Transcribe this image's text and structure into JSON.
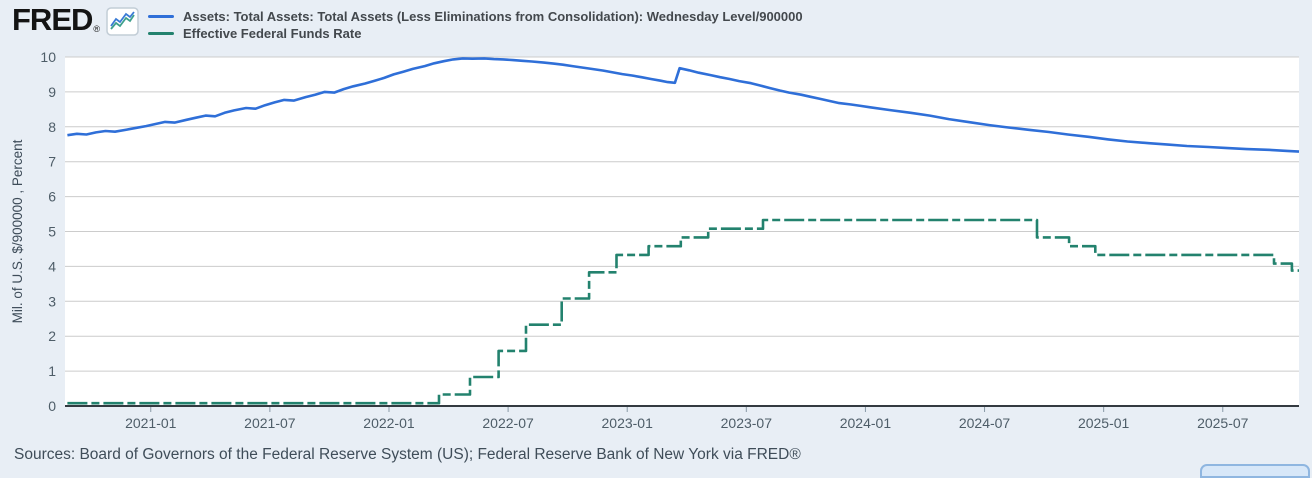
{
  "header": {
    "logo_text": "FRED",
    "logo_registered": "®",
    "legend": [
      {
        "label": "Assets: Total Assets: Total Assets (Less Eliminations from Consolidation): Wednesday Level/900000",
        "color": "#2f6fd8"
      },
      {
        "label": "Effective Federal Funds Rate",
        "color": "#23826e"
      }
    ]
  },
  "footer": {
    "sources": "Sources: Board of Governors of the Federal Reserve System (US); Federal Reserve Bank of New York via FRED®"
  },
  "colors": {
    "page_background": "#e8eef5",
    "plot_background": "#ffffff",
    "gridline": "#cccccc",
    "axis_line": "#333a40",
    "tick_text": "#4e5d68",
    "assets_line": "#2f6fd8",
    "effr_line": "#23826e"
  },
  "chart_data": {
    "type": "line",
    "title": "",
    "xlabel": "",
    "ylabel": "Mil. of U.S. $/900000 , Percent",
    "ylim": [
      0,
      10
    ],
    "yticks": [
      0,
      1,
      2,
      3,
      4,
      5,
      6,
      7,
      8,
      9,
      10
    ],
    "xlim_years": [
      2020.64,
      2025.82
    ],
    "xtick_years": [
      2021.0,
      2021.5,
      2022.0,
      2022.5,
      2023.0,
      2023.5,
      2024.0,
      2024.5,
      2025.0,
      2025.5
    ],
    "xtick_labels": [
      "2021-01",
      "2021-07",
      "2022-01",
      "2022-07",
      "2023-01",
      "2023-07",
      "2024-01",
      "2024-07",
      "2025-01",
      "2025-07"
    ],
    "grid": "horizontal",
    "legend_position": "top-left",
    "series": [
      {
        "name": "Assets: Total Assets: Total Assets (Less Eliminations from Consolidation): Wednesday Level/900000",
        "data_name": "assets-series-line",
        "color": "#2f6fd8",
        "line_style": "solid",
        "interpolation": "linear",
        "points": [
          [
            2020.65,
            7.76
          ],
          [
            2020.69,
            7.8
          ],
          [
            2020.73,
            7.78
          ],
          [
            2020.77,
            7.84
          ],
          [
            2020.81,
            7.88
          ],
          [
            2020.85,
            7.86
          ],
          [
            2020.9,
            7.92
          ],
          [
            2020.94,
            7.97
          ],
          [
            2020.98,
            8.02
          ],
          [
            2021.02,
            8.08
          ],
          [
            2021.06,
            8.14
          ],
          [
            2021.1,
            8.12
          ],
          [
            2021.15,
            8.2
          ],
          [
            2021.19,
            8.26
          ],
          [
            2021.23,
            8.32
          ],
          [
            2021.27,
            8.3
          ],
          [
            2021.31,
            8.4
          ],
          [
            2021.35,
            8.47
          ],
          [
            2021.4,
            8.54
          ],
          [
            2021.44,
            8.52
          ],
          [
            2021.48,
            8.62
          ],
          [
            2021.52,
            8.7
          ],
          [
            2021.56,
            8.77
          ],
          [
            2021.6,
            8.75
          ],
          [
            2021.65,
            8.85
          ],
          [
            2021.69,
            8.92
          ],
          [
            2021.73,
            9.0
          ],
          [
            2021.77,
            8.98
          ],
          [
            2021.81,
            9.08
          ],
          [
            2021.85,
            9.16
          ],
          [
            2021.9,
            9.24
          ],
          [
            2021.94,
            9.32
          ],
          [
            2021.98,
            9.4
          ],
          [
            2022.02,
            9.5
          ],
          [
            2022.06,
            9.58
          ],
          [
            2022.1,
            9.66
          ],
          [
            2022.15,
            9.74
          ],
          [
            2022.19,
            9.82
          ],
          [
            2022.23,
            9.88
          ],
          [
            2022.27,
            9.93
          ],
          [
            2022.31,
            9.96
          ],
          [
            2022.35,
            9.95
          ],
          [
            2022.4,
            9.96
          ],
          [
            2022.44,
            9.94
          ],
          [
            2022.48,
            9.93
          ],
          [
            2022.52,
            9.91
          ],
          [
            2022.56,
            9.89
          ],
          [
            2022.6,
            9.87
          ],
          [
            2022.65,
            9.84
          ],
          [
            2022.69,
            9.81
          ],
          [
            2022.73,
            9.78
          ],
          [
            2022.77,
            9.74
          ],
          [
            2022.81,
            9.7
          ],
          [
            2022.85,
            9.66
          ],
          [
            2022.9,
            9.61
          ],
          [
            2022.94,
            9.56
          ],
          [
            2022.98,
            9.51
          ],
          [
            2023.02,
            9.47
          ],
          [
            2023.06,
            9.42
          ],
          [
            2023.1,
            9.37
          ],
          [
            2023.14,
            9.32
          ],
          [
            2023.17,
            9.28
          ],
          [
            2023.2,
            9.26
          ],
          [
            2023.22,
            9.68
          ],
          [
            2023.26,
            9.62
          ],
          [
            2023.3,
            9.55
          ],
          [
            2023.35,
            9.48
          ],
          [
            2023.39,
            9.42
          ],
          [
            2023.43,
            9.37
          ],
          [
            2023.47,
            9.31
          ],
          [
            2023.52,
            9.25
          ],
          [
            2023.56,
            9.18
          ],
          [
            2023.6,
            9.11
          ],
          [
            2023.64,
            9.04
          ],
          [
            2023.68,
            8.98
          ],
          [
            2023.73,
            8.92
          ],
          [
            2023.77,
            8.86
          ],
          [
            2023.81,
            8.8
          ],
          [
            2023.85,
            8.74
          ],
          [
            2023.89,
            8.68
          ],
          [
            2023.94,
            8.64
          ],
          [
            2023.98,
            8.6
          ],
          [
            2024.02,
            8.56
          ],
          [
            2024.1,
            8.48
          ],
          [
            2024.19,
            8.4
          ],
          [
            2024.27,
            8.32
          ],
          [
            2024.35,
            8.22
          ],
          [
            2024.44,
            8.13
          ],
          [
            2024.52,
            8.05
          ],
          [
            2024.6,
            7.98
          ],
          [
            2024.69,
            7.91
          ],
          [
            2024.77,
            7.85
          ],
          [
            2024.85,
            7.78
          ],
          [
            2024.94,
            7.71
          ],
          [
            2025.02,
            7.64
          ],
          [
            2025.1,
            7.58
          ],
          [
            2025.19,
            7.53
          ],
          [
            2025.27,
            7.49
          ],
          [
            2025.35,
            7.45
          ],
          [
            2025.44,
            7.42
          ],
          [
            2025.52,
            7.39
          ],
          [
            2025.6,
            7.36
          ],
          [
            2025.69,
            7.34
          ],
          [
            2025.77,
            7.31
          ],
          [
            2025.82,
            7.29
          ]
        ]
      },
      {
        "name": "Effective Federal Funds Rate",
        "data_name": "effr-series-line",
        "color": "#23826e",
        "line_style": "dash-dot",
        "dash": "20 4 8 4",
        "interpolation": "step-after",
        "points": [
          [
            2020.65,
            0.08
          ],
          [
            2022.21,
            0.33
          ],
          [
            2022.34,
            0.83
          ],
          [
            2022.46,
            1.58
          ],
          [
            2022.575,
            2.33
          ],
          [
            2022.725,
            3.08
          ],
          [
            2022.84,
            3.83
          ],
          [
            2022.955,
            4.33
          ],
          [
            2023.09,
            4.58
          ],
          [
            2023.225,
            4.83
          ],
          [
            2023.34,
            5.08
          ],
          [
            2023.57,
            5.33
          ],
          [
            2024.72,
            4.83
          ],
          [
            2024.855,
            4.58
          ],
          [
            2024.965,
            4.33
          ],
          [
            2025.715,
            4.08
          ],
          [
            2025.79,
            3.88
          ],
          [
            2025.82,
            3.88
          ]
        ]
      }
    ]
  }
}
